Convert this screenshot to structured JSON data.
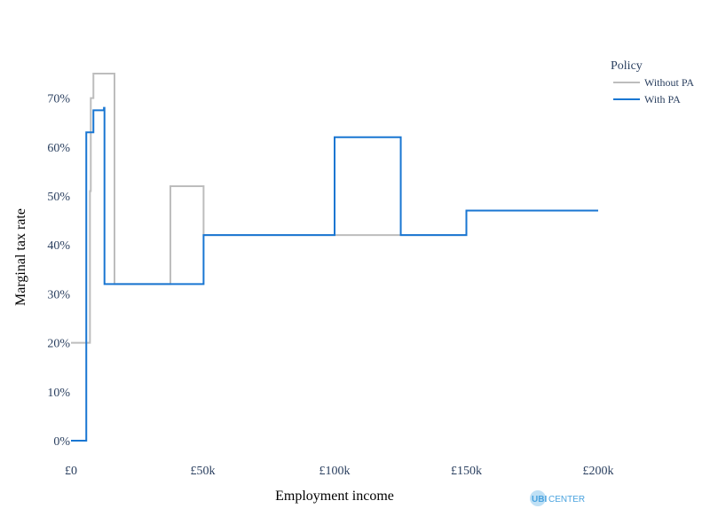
{
  "colors": {
    "without_pa": "#bdbdbd",
    "with_pa": "#1976d2",
    "axis_text": "#2a3f5f",
    "logo_blue": "#4aa3df",
    "logo_bubble": "#bfe0f5"
  },
  "logo": {
    "part1": "UBI",
    "part2": "CENTER"
  },
  "chart_data": {
    "type": "line",
    "title": "",
    "xlabel": "Employment income",
    "ylabel": "Marginal tax rate",
    "xlim": [
      0,
      200000
    ],
    "ylim": [
      0,
      0.75
    ],
    "xticks": [
      {
        "value": 0,
        "label": "£0"
      },
      {
        "value": 50000,
        "label": "£50k"
      },
      {
        "value": 100000,
        "label": "£100k"
      },
      {
        "value": 150000,
        "label": "£150k"
      },
      {
        "value": 200000,
        "label": "£200k"
      }
    ],
    "yticks": [
      {
        "value": 0,
        "label": "0%"
      },
      {
        "value": 0.1,
        "label": "10%"
      },
      {
        "value": 0.2,
        "label": "20%"
      },
      {
        "value": 0.3,
        "label": "30%"
      },
      {
        "value": 0.4,
        "label": "40%"
      },
      {
        "value": 0.5,
        "label": "50%"
      },
      {
        "value": 0.6,
        "label": "60%"
      },
      {
        "value": 0.7,
        "label": "70%"
      }
    ],
    "grid": false,
    "legend": {
      "title": "Policy",
      "placement": "top-right"
    },
    "series": [
      {
        "name": "Without PA",
        "color_key": "without_pa",
        "x": [
          0,
          7200,
          7200,
          7500,
          7500,
          8500,
          8500,
          16500,
          16500,
          37700,
          37700,
          50300,
          50300,
          150000,
          150000,
          200000
        ],
        "y": [
          0.2,
          0.2,
          0.51,
          0.51,
          0.7,
          0.7,
          0.75,
          0.75,
          0.32,
          0.32,
          0.52,
          0.52,
          0.42,
          0.42,
          0.47,
          0.47
        ]
      },
      {
        "name": "With PA",
        "color_key": "with_pa",
        "x": [
          0,
          5800,
          5800,
          8500,
          8500,
          12500,
          12500,
          12700,
          12700,
          50300,
          50300,
          100000,
          100000,
          125100,
          125100,
          150000,
          150000,
          200000
        ],
        "y": [
          0,
          0,
          0.63,
          0.63,
          0.675,
          0.675,
          0.68,
          0.68,
          0.32,
          0.32,
          0.42,
          0.42,
          0.62,
          0.62,
          0.42,
          0.42,
          0.47,
          0.47
        ]
      }
    ]
  }
}
